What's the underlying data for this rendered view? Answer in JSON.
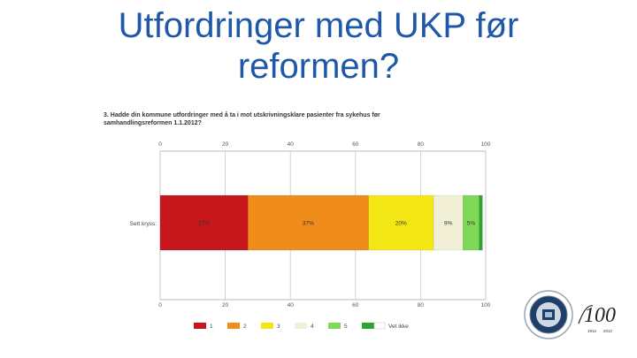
{
  "slide": {
    "title_line1": "Utfordringer med UKP før",
    "title_line2": "reformen?"
  },
  "chart_data": {
    "type": "bar",
    "orientation": "horizontal-stacked",
    "title_line1": "3. Hadde din kommune utfordringer med å ta i mot utskrivningsklare pasienter fra sykehus før",
    "title_line2": "samhandlingsreformen 1.1.2012?",
    "categories": [
      "Sett kryss:"
    ],
    "series": [
      {
        "name": "1",
        "values": [
          27
        ],
        "label": "27%",
        "color": "#c8161d"
      },
      {
        "name": "2",
        "values": [
          37
        ],
        "label": "37%",
        "color": "#f08c1a"
      },
      {
        "name": "3",
        "values": [
          20
        ],
        "label": "20%",
        "color": "#f2e614"
      },
      {
        "name": "4",
        "values": [
          9
        ],
        "label": "9%",
        "color": "#f1efd5"
      },
      {
        "name": "5",
        "values": [
          5
        ],
        "label": "5%",
        "color": "#7ed957"
      },
      {
        "name": "6",
        "values": [
          1
        ],
        "label": "",
        "color": "#2ea52e"
      },
      {
        "name": "Vet ikke",
        "values": [
          0
        ],
        "label": "",
        "color": "#ffffff"
      }
    ],
    "xlim": [
      0,
      100
    ],
    "ticks": [
      "0",
      "20",
      "40",
      "60",
      "80",
      "100"
    ],
    "grid": true,
    "legend_placement": "bottom"
  },
  "logo": {
    "anniversary_text": "100",
    "years": [
      "1912",
      "2012"
    ]
  }
}
